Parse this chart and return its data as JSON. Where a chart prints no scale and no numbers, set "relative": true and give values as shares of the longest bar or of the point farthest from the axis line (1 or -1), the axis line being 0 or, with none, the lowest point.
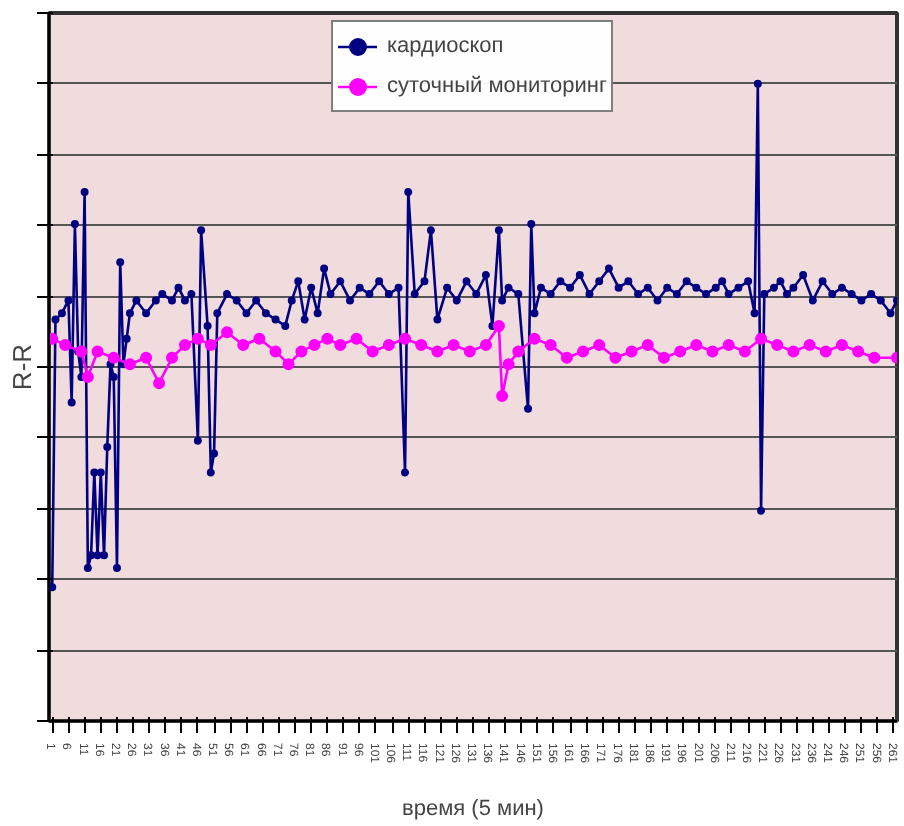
{
  "chart_data": {
    "type": "line",
    "xlabel": "время (5 мин)",
    "ylabel": "R-R",
    "relative": true,
    "marker": "circle",
    "grid": "y",
    "legend": "top",
    "xlim": [
      0,
      262
    ],
    "xticks": [
      1,
      6,
      11,
      16,
      21,
      26,
      31,
      36,
      41,
      46,
      51,
      56,
      61,
      66,
      71,
      76,
      81,
      86,
      91,
      96,
      101,
      106,
      111,
      116,
      121,
      126,
      131,
      136,
      141,
      146,
      151,
      156,
      161,
      166,
      171,
      176,
      181,
      186,
      191,
      196,
      201,
      206,
      211,
      216,
      221,
      226,
      231,
      236,
      241,
      246,
      251,
      256,
      261
    ],
    "series": [
      {
        "name": "кардиоскоп",
        "color": "#000080",
        "x": [
          1,
          2,
          4,
          6,
          7,
          8,
          9,
          10,
          11,
          12,
          13,
          14,
          15,
          16,
          17,
          18,
          19,
          20,
          21,
          22,
          23,
          24,
          25,
          27,
          30,
          33,
          35,
          38,
          40,
          42,
          44,
          46,
          47,
          49,
          50,
          51,
          52,
          55,
          58,
          61,
          64,
          67,
          70,
          73,
          75,
          77,
          79,
          81,
          83,
          85,
          87,
          90,
          93,
          96,
          99,
          102,
          105,
          108,
          110,
          111,
          113,
          116,
          118,
          120,
          123,
          126,
          129,
          132,
          135,
          137,
          139,
          140,
          142,
          145,
          148,
          149,
          150,
          152,
          155,
          158,
          161,
          164,
          167,
          170,
          173,
          176,
          179,
          182,
          185,
          188,
          191,
          194,
          197,
          200,
          203,
          206,
          208,
          210,
          213,
          216,
          218,
          219,
          220,
          221,
          224,
          226,
          228,
          230,
          233,
          236,
          239,
          242,
          245,
          248,
          251,
          254,
          257,
          260,
          262
        ],
        "values": [
          0.21,
          0.63,
          0.64,
          0.66,
          0.5,
          0.78,
          0.58,
          0.54,
          0.83,
          0.24,
          0.26,
          0.39,
          0.26,
          0.39,
          0.26,
          0.43,
          0.56,
          0.54,
          0.24,
          0.72,
          0.56,
          0.6,
          0.64,
          0.66,
          0.64,
          0.66,
          0.67,
          0.66,
          0.68,
          0.66,
          0.67,
          0.44,
          0.77,
          0.62,
          0.39,
          0.42,
          0.64,
          0.67,
          0.66,
          0.64,
          0.66,
          0.64,
          0.63,
          0.62,
          0.66,
          0.69,
          0.63,
          0.68,
          0.64,
          0.71,
          0.67,
          0.69,
          0.66,
          0.68,
          0.67,
          0.69,
          0.67,
          0.68,
          0.39,
          0.83,
          0.67,
          0.69,
          0.77,
          0.63,
          0.68,
          0.66,
          0.69,
          0.67,
          0.7,
          0.62,
          0.77,
          0.66,
          0.68,
          0.67,
          0.49,
          0.78,
          0.64,
          0.68,
          0.67,
          0.69,
          0.68,
          0.7,
          0.67,
          0.69,
          0.71,
          0.68,
          0.69,
          0.67,
          0.68,
          0.66,
          0.68,
          0.67,
          0.69,
          0.68,
          0.67,
          0.68,
          0.69,
          0.67,
          0.68,
          0.69,
          0.64,
          1,
          0.33,
          0.67,
          0.68,
          0.69,
          0.67,
          0.68,
          0.7,
          0.66,
          0.69,
          0.67,
          0.68,
          0.67,
          0.66,
          0.67,
          0.66,
          0.64,
          0.66
        ]
      },
      {
        "name": "суточный мониторинг",
        "color": "#ff00ff",
        "x": [
          1,
          5,
          10,
          12,
          15,
          20,
          25,
          30,
          34,
          38,
          42,
          46,
          50,
          55,
          60,
          65,
          70,
          74,
          78,
          82,
          86,
          90,
          95,
          100,
          105,
          110,
          115,
          120,
          125,
          130,
          135,
          139,
          140,
          142,
          145,
          150,
          155,
          160,
          165,
          170,
          175,
          180,
          185,
          190,
          195,
          200,
          205,
          210,
          215,
          220,
          225,
          230,
          235,
          240,
          245,
          250,
          255,
          262
        ],
        "values": [
          0.6,
          0.59,
          0.58,
          0.54,
          0.58,
          0.57,
          0.56,
          0.57,
          0.53,
          0.57,
          0.59,
          0.6,
          0.59,
          0.61,
          0.59,
          0.6,
          0.58,
          0.56,
          0.58,
          0.59,
          0.6,
          0.59,
          0.6,
          0.58,
          0.59,
          0.6,
          0.59,
          0.58,
          0.59,
          0.58,
          0.59,
          0.62,
          0.51,
          0.56,
          0.58,
          0.6,
          0.59,
          0.57,
          0.58,
          0.59,
          0.57,
          0.58,
          0.59,
          0.57,
          0.58,
          0.59,
          0.58,
          0.59,
          0.58,
          0.6,
          0.59,
          0.58,
          0.59,
          0.58,
          0.59,
          0.58,
          0.57,
          0.57
        ]
      }
    ]
  }
}
